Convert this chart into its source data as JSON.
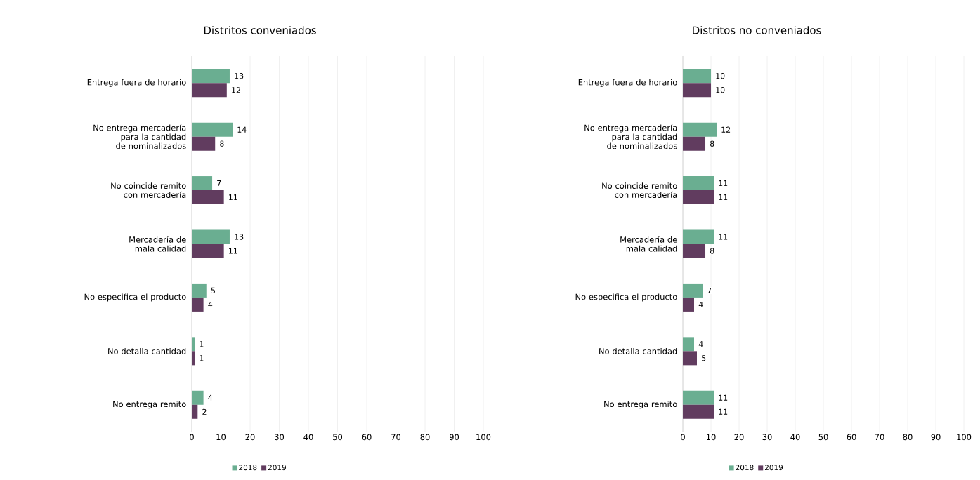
{
  "chart_data": [
    {
      "type": "bar",
      "orientation": "horizontal",
      "title": "Distritos conveniados",
      "categories": [
        "Entrega fuera de horario",
        "No entrega mercadería para la cantidad de nominalizados",
        "No coincide remito con mercadería",
        "Mercadería de mala calidad",
        "No especifica el producto",
        "No detalla cantidad",
        "No entrega remito"
      ],
      "series": [
        {
          "name": "2018",
          "color": "#6aae91",
          "values": [
            13,
            14,
            7,
            13,
            5,
            1,
            4
          ]
        },
        {
          "name": "2019",
          "color": "#613c5f",
          "values": [
            12,
            8,
            11,
            11,
            4,
            1,
            2
          ]
        }
      ],
      "xlim": [
        0,
        100
      ],
      "xticks": [
        0,
        10,
        20,
        30,
        40,
        50,
        60,
        70,
        80,
        90,
        100
      ],
      "grid": "x",
      "legend": "bottom",
      "data_labels": true
    },
    {
      "type": "bar",
      "orientation": "horizontal",
      "title": "Distritos no conveniados",
      "categories": [
        "Entrega fuera de horario",
        "No entrega mercadería para la cantidad de nominalizados",
        "No coincide remito con mercadería",
        "Mercadería de mala calidad",
        "No especifica el producto",
        "No detalla cantidad",
        "No entrega remito"
      ],
      "series": [
        {
          "name": "2018",
          "color": "#6aae91",
          "values": [
            10,
            12,
            11,
            11,
            7,
            4,
            11
          ]
        },
        {
          "name": "2019",
          "color": "#613c5f",
          "values": [
            10,
            8,
            11,
            8,
            4,
            5,
            11
          ]
        }
      ],
      "xlim": [
        0,
        100
      ],
      "xticks": [
        0,
        10,
        20,
        30,
        40,
        50,
        60,
        70,
        80,
        90,
        100
      ],
      "grid": "x",
      "legend": "bottom",
      "data_labels": true
    }
  ]
}
